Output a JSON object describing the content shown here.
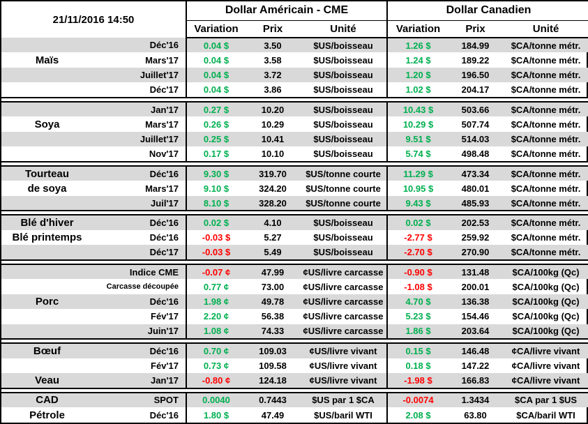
{
  "colors": {
    "positive": "#00B050",
    "negative": "#FF0000",
    "row_shade": "#D9D9D9",
    "border": "#000000"
  },
  "chart_data": {
    "type": "table",
    "timestamp": "21/11/2016 14:50",
    "sections": [
      {
        "id": "us",
        "title": "Dollar Américain - CME",
        "columns": [
          "Variation",
          "Prix",
          "Unité"
        ]
      },
      {
        "id": "ca",
        "title": "Dollar Canadien",
        "columns": [
          "Variation",
          "Prix",
          "Unité"
        ]
      }
    ],
    "groups": [
      {
        "name": "Maïs",
        "rows": [
          {
            "label": "",
            "month": "Déc'16",
            "us": {
              "variation": "0.04 $",
              "prix": "3.50",
              "unite": "$US/boisseau"
            },
            "ca": {
              "variation": "1.26 $",
              "prix": "184.99",
              "unite": "$CA/tonne métr."
            }
          },
          {
            "label": "Maïs",
            "month": "Mars'17",
            "us": {
              "variation": "0.04 $",
              "prix": "3.58",
              "unite": "$US/boisseau"
            },
            "ca": {
              "variation": "1.24 $",
              "prix": "189.22",
              "unite": "$CA/tonne métr."
            }
          },
          {
            "label": "",
            "month": "Juillet'17",
            "us": {
              "variation": "0.04 $",
              "prix": "3.72",
              "unite": "$US/boisseau"
            },
            "ca": {
              "variation": "1.20 $",
              "prix": "196.50",
              "unite": "$CA/tonne métr."
            }
          },
          {
            "label": "",
            "month": "Déc'17",
            "us": {
              "variation": "0.04 $",
              "prix": "3.86",
              "unite": "$US/boisseau"
            },
            "ca": {
              "variation": "1.02 $",
              "prix": "204.17",
              "unite": "$CA/tonne métr."
            }
          }
        ]
      },
      {
        "name": "Soya",
        "rows": [
          {
            "label": "",
            "month": "Jan'17",
            "us": {
              "variation": "0.27 $",
              "prix": "10.20",
              "unite": "$US/boisseau"
            },
            "ca": {
              "variation": "10.43 $",
              "prix": "503.66",
              "unite": "$CA/tonne métr."
            }
          },
          {
            "label": "Soya",
            "month": "Mars'17",
            "us": {
              "variation": "0.26 $",
              "prix": "10.29",
              "unite": "$US/boisseau"
            },
            "ca": {
              "variation": "10.29 $",
              "prix": "507.74",
              "unite": "$CA/tonne métr."
            }
          },
          {
            "label": "",
            "month": "Juillet'17",
            "us": {
              "variation": "0.25 $",
              "prix": "10.41",
              "unite": "$US/boisseau"
            },
            "ca": {
              "variation": "9.51 $",
              "prix": "514.03",
              "unite": "$CA/tonne métr."
            }
          },
          {
            "label": "",
            "month": "Nov'17",
            "us": {
              "variation": "0.17 $",
              "prix": "10.10",
              "unite": "$US/boisseau"
            },
            "ca": {
              "variation": "5.74 $",
              "prix": "498.48",
              "unite": "$CA/tonne métr."
            }
          }
        ]
      },
      {
        "name": "Tourteau de soya",
        "rows": [
          {
            "label": "Tourteau",
            "month": "Déc'16",
            "us": {
              "variation": "9.30 $",
              "prix": "319.70",
              "unite": "$US/tonne courte"
            },
            "ca": {
              "variation": "11.29 $",
              "prix": "473.34",
              "unite": "$CA/tonne métr."
            }
          },
          {
            "label": "de soya",
            "month": "Mars'17",
            "us": {
              "variation": "9.10 $",
              "prix": "324.20",
              "unite": "$US/tonne courte"
            },
            "ca": {
              "variation": "10.95 $",
              "prix": "480.01",
              "unite": "$CA/tonne métr."
            }
          },
          {
            "label": "",
            "month": "Juil'17",
            "us": {
              "variation": "8.10 $",
              "prix": "328.20",
              "unite": "$US/tonne courte"
            },
            "ca": {
              "variation": "9.43 $",
              "prix": "485.93",
              "unite": "$CA/tonne métr."
            }
          }
        ]
      },
      {
        "name": "Blé",
        "rows": [
          {
            "label": "Blé d'hiver",
            "month": "Déc'16",
            "us": {
              "variation": "0.02 $",
              "prix": "4.10",
              "unite": "$US/boisseau"
            },
            "ca": {
              "variation": "0.02 $",
              "prix": "202.53",
              "unite": "$CA/tonne métr."
            }
          },
          {
            "label": "Blé printemps",
            "month": "Déc'16",
            "us": {
              "variation": "-0.03 $",
              "prix": "5.27",
              "unite": "$US/boisseau"
            },
            "ca": {
              "variation": "-2.77 $",
              "prix": "259.92",
              "unite": "$CA/tonne métr."
            }
          },
          {
            "label": "",
            "month": "Déc'17",
            "us": {
              "variation": "-0.03 $",
              "prix": "5.49",
              "unite": "$US/boisseau"
            },
            "ca": {
              "variation": "-2.70 $",
              "prix": "270.90",
              "unite": "$CA/tonne métr."
            }
          }
        ]
      },
      {
        "name": "Porc",
        "rows": [
          {
            "label": "",
            "month": "Indice CME",
            "us": {
              "variation": "-0.07 ¢",
              "prix": "47.99",
              "unite": "¢US/livre carcasse"
            },
            "ca": {
              "variation": "-0.90 $",
              "prix": "131.48",
              "unite": "$CA/100kg (Qc)"
            }
          },
          {
            "label": "",
            "month": "Carcasse découpée",
            "small_month": true,
            "us": {
              "variation": "0.77 ¢",
              "prix": "73.00",
              "unite": "¢US/livre carcasse"
            },
            "ca": {
              "variation": "-1.08 $",
              "prix": "200.01",
              "unite": "$CA/100kg (Qc)"
            }
          },
          {
            "label": "Porc",
            "month": "Déc'16",
            "us": {
              "variation": "1.98 ¢",
              "prix": "49.78",
              "unite": "¢US/livre carcasse"
            },
            "ca": {
              "variation": "4.70 $",
              "prix": "136.38",
              "unite": "$CA/100kg (Qc)"
            }
          },
          {
            "label": "",
            "month": "Fév'17",
            "us": {
              "variation": "2.20 ¢",
              "prix": "56.38",
              "unite": "¢US/livre carcasse"
            },
            "ca": {
              "variation": "5.23 $",
              "prix": "154.46",
              "unite": "$CA/100kg (Qc)"
            }
          },
          {
            "label": "",
            "month": "Juin'17",
            "us": {
              "variation": "1.08 ¢",
              "prix": "74.33",
              "unite": "¢US/livre carcasse"
            },
            "ca": {
              "variation": "1.86 $",
              "prix": "203.64",
              "unite": "$CA/100kg (Qc)"
            }
          }
        ]
      },
      {
        "name": "Bœuf / Veau",
        "rows": [
          {
            "label": "Bœuf",
            "month": "Déc'16",
            "us": {
              "variation": "0.70 ¢",
              "prix": "109.03",
              "unite": "¢US/livre vivant"
            },
            "ca": {
              "variation": "0.15 $",
              "prix": "146.48",
              "unite": "¢CA/livre vivant"
            }
          },
          {
            "label": "",
            "month": "Fév'17",
            "us": {
              "variation": "0.73 ¢",
              "prix": "109.58",
              "unite": "¢US/livre vivant"
            },
            "ca": {
              "variation": "0.18 $",
              "prix": "147.22",
              "unite": "¢CA/livre vivant"
            }
          },
          {
            "label": "Veau",
            "month": "Jan'17",
            "us": {
              "variation": "-0.80 ¢",
              "prix": "124.18",
              "unite": "¢US/livre vivant"
            },
            "ca": {
              "variation": "-1.98 $",
              "prix": "166.83",
              "unite": "¢CA/livre vivant"
            }
          }
        ]
      },
      {
        "name": "CAD / Pétrole",
        "rows": [
          {
            "label": "CAD",
            "month": "SPOT",
            "us": {
              "variation": "0.0040",
              "prix": "0.7443",
              "unite": "$US par 1 $CA"
            },
            "ca": {
              "variation": "-0.0074",
              "prix": "1.3434",
              "unite": "$CA par 1 $US"
            }
          },
          {
            "label": "Pétrole",
            "month": "Déc'16",
            "us": {
              "variation": "1.80 $",
              "prix": "47.49",
              "unite": "$US/baril WTI"
            },
            "ca": {
              "variation": "2.08 $",
              "prix": "63.80",
              "unite": "$CA/baril WTI"
            }
          }
        ]
      }
    ]
  }
}
